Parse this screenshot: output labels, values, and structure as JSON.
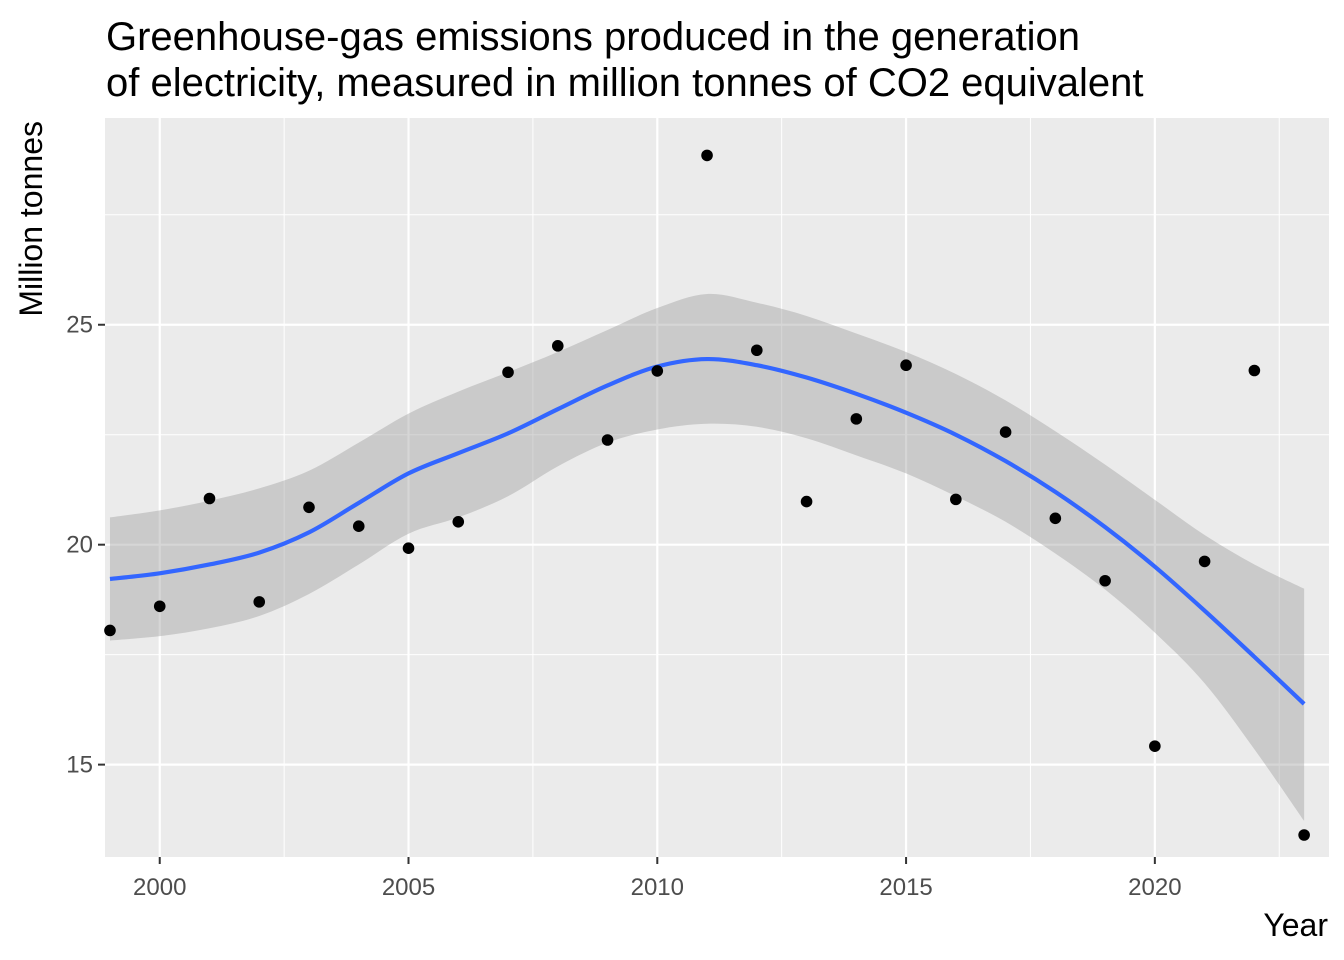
{
  "chart_data": {
    "type": "scatter",
    "title_lines": [
      "Greenhouse-gas emissions produced in the generation",
      "of electricity, measured in million tonnes of CO2 equivalent"
    ],
    "xlabel": "Year",
    "ylabel": "Million tonnes",
    "xlim": [
      1998.9,
      2023.5
    ],
    "ylim": [
      12.9,
      29.7
    ],
    "x_ticks": [
      2000,
      2005,
      2010,
      2015,
      2020
    ],
    "x_tick_labels": [
      "2000",
      "2005",
      "2010",
      "2015",
      "2020"
    ],
    "y_ticks": [
      15,
      20,
      25
    ],
    "y_tick_labels": [
      "15",
      "20",
      "25"
    ],
    "grid": true,
    "legend": "none",
    "points": {
      "x": [
        1999,
        2000,
        2001,
        2002,
        2003,
        2004,
        2005,
        2006,
        2007,
        2008,
        2009,
        2010,
        2011,
        2012,
        2013,
        2014,
        2015,
        2016,
        2017,
        2018,
        2019,
        2020,
        2021,
        2022,
        2023
      ],
      "y": [
        18.05,
        18.6,
        21.05,
        18.7,
        20.85,
        20.42,
        19.92,
        20.52,
        23.92,
        24.52,
        22.38,
        23.95,
        28.85,
        24.42,
        20.98,
        22.86,
        24.08,
        21.03,
        22.56,
        20.6,
        19.18,
        15.42,
        19.62,
        23.96,
        13.4
      ]
    },
    "smooth": {
      "method": "loess",
      "x": [
        1999,
        2000,
        2001,
        2002,
        2003,
        2004,
        2005,
        2006,
        2007,
        2008,
        2009,
        2010,
        2011,
        2012,
        2013,
        2014,
        2015,
        2016,
        2017,
        2018,
        2019,
        2020,
        2021,
        2022,
        2023
      ],
      "y": [
        19.22,
        19.35,
        19.55,
        19.82,
        20.28,
        20.95,
        21.62,
        22.08,
        22.53,
        23.08,
        23.62,
        24.05,
        24.22,
        24.08,
        23.8,
        23.43,
        23.0,
        22.5,
        21.9,
        21.2,
        20.4,
        19.5,
        18.5,
        17.45,
        16.38
      ],
      "lower": [
        17.82,
        17.92,
        18.1,
        18.38,
        18.88,
        19.55,
        20.25,
        20.62,
        21.1,
        21.78,
        22.32,
        22.62,
        22.75,
        22.68,
        22.42,
        22.03,
        21.62,
        21.1,
        20.52,
        19.8,
        18.98,
        18.0,
        16.85,
        15.35,
        13.72
      ],
      "upper": [
        20.62,
        20.78,
        21.0,
        21.28,
        21.68,
        22.32,
        22.98,
        23.48,
        23.92,
        24.38,
        24.88,
        25.38,
        25.7,
        25.5,
        25.2,
        24.8,
        24.38,
        23.88,
        23.28,
        22.58,
        21.82,
        21.02,
        20.22,
        19.55,
        19.0
      ]
    },
    "colors": {
      "panel_background": "#ebebeb",
      "grid_major": "#ffffff",
      "point": "#000000",
      "smooth_line": "#3366ff",
      "ribbon": "#999999",
      "tick_label": "#4d4d4d",
      "tick_mark": "#333333"
    }
  }
}
